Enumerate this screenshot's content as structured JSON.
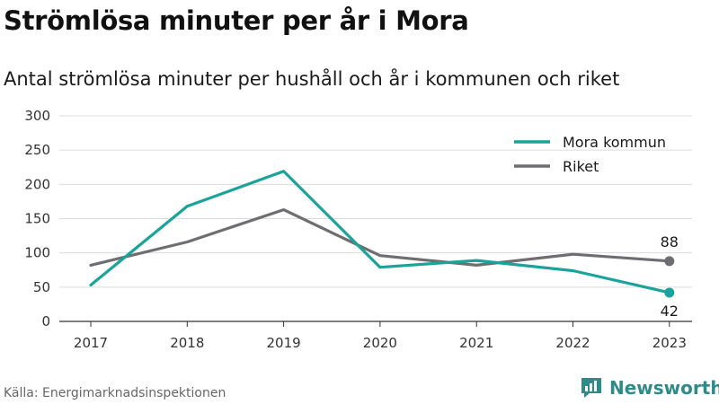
{
  "title": "Strömlösa minuter per år i Mora",
  "subtitle": "Antal strömlösa minuter per hushåll och år i kommunen och riket",
  "source": "Källa: Energimarknadsinspektionen",
  "brand": "Newsworthy",
  "chart_data": {
    "type": "line",
    "x": [
      "2017",
      "2018",
      "2019",
      "2020",
      "2021",
      "2022",
      "2023"
    ],
    "series": [
      {
        "name": "Mora kommun",
        "color": "#1aa39a",
        "values": [
          53,
          168,
          219,
          79,
          89,
          74,
          42
        ]
      },
      {
        "name": "Riket",
        "color": "#6e6e72",
        "values": [
          82,
          116,
          163,
          96,
          82,
          98,
          88
        ]
      }
    ],
    "yticks": [
      0,
      50,
      100,
      150,
      200,
      250,
      300
    ],
    "ylim": [
      0,
      300
    ],
    "grid": true,
    "legend": "top-right",
    "end_labels": [
      "42",
      "88"
    ]
  }
}
